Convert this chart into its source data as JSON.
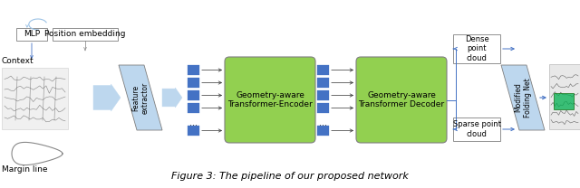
{
  "title": "Figure 3: The pipeline of our proposed network",
  "title_fontsize": 8,
  "title_style": "italic",
  "bg_color": "#ffffff",
  "fig_width": 6.4,
  "fig_height": 2.08,
  "labels": {
    "context": "Context",
    "margin_line": "Margin line",
    "mlp": "MLP",
    "pos_embed": "Position embedding",
    "feature_extractor": "Feature\nextractor",
    "geo_encoder": "Geometry-aware\nTransformer-Encoder",
    "geo_decoder": "Geometry-aware\nTransformer Decoder",
    "modified_folding": "Modified\nFolding Net",
    "dense_cloud": "Dense\npoint\ncloud",
    "sparse_cloud": "Sparse point\ncloud"
  },
  "colors": {
    "blue_block": "#4472c4",
    "blue_arrow_fill": "#bdd7ee",
    "green_box": "#92d050",
    "box_border": "#7f7f7f",
    "text_dark": "#000000",
    "arrow_blue": "#4472c4",
    "light_blue": "#9dc3e6",
    "white": "#ffffff",
    "outline": "#7f7f7f",
    "green_rect": "#00b050"
  }
}
